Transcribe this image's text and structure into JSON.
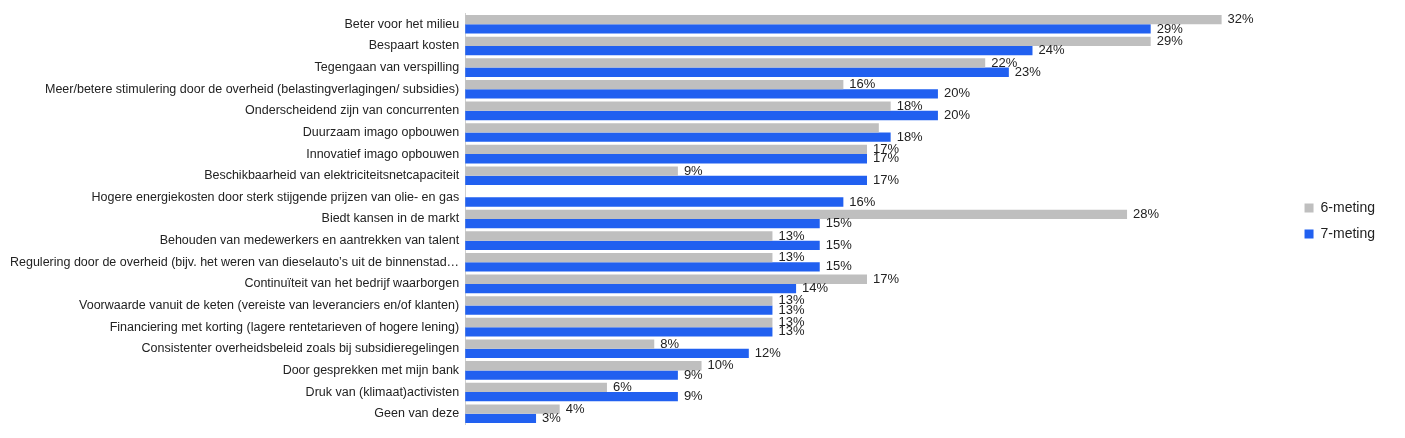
{
  "chart_data": {
    "type": "bar",
    "orientation": "horizontal",
    "legend": "right",
    "categories": [
      "Beter voor het milieu",
      "Bespaart kosten",
      "Tegengaan van verspilling",
      "Meer/betere stimulering door de overheid (belastingverlagingen/ subsidies)",
      "Onderscheidend zijn van concurrenten",
      "Duurzaam imago opbouwen",
      "Innovatief imago opbouwen",
      "Beschikbaarheid van elektriciteitsnetcapaciteit",
      "Hogere energiekosten door sterk stijgende prijzen van olie- en gas",
      "Biedt kansen in de markt",
      "Behouden van medewerkers en aantrekken van talent",
      "Regulering door de overheid (bijv. het weren van dieselauto’s uit de binnenstad…",
      "Continuïteit van het bedrijf waarborgen",
      "Voorwaarde vanuit de keten (vereiste van leveranciers en/of klanten)",
      "Financiering met korting (lagere rentetarieven of hogere lening)",
      "Consistenter overheidsbeleid zoals bij subsidieregelingen",
      "Door gesprekken met mijn bank",
      "Druk van (klimaat)activisten",
      "Geen van deze"
    ],
    "series": [
      {
        "name": "6-meting",
        "color": "#bfbfbf",
        "values": [
          32,
          29,
          22,
          16,
          18,
          17.5,
          17,
          9,
          null,
          28,
          13,
          13,
          17,
          13,
          13,
          8,
          10,
          6,
          4
        ],
        "value_labels": [
          "32%",
          "29%",
          "22%",
          "16%",
          "18%",
          null,
          "17%",
          "9%",
          null,
          "28%",
          "13%",
          "13%",
          "17%",
          "13%",
          "13%",
          "8%",
          "10%",
          "6%",
          "4%"
        ]
      },
      {
        "name": "7-meting",
        "color": "#2160f0",
        "values": [
          29,
          24,
          23,
          20,
          20,
          18,
          17,
          17,
          16,
          15,
          15,
          15,
          14,
          13,
          13,
          12,
          9,
          9,
          3
        ],
        "value_labels": [
          "29%",
          "24%",
          "23%",
          "20%",
          "20%",
          "18%",
          "17%",
          "17%",
          "16%",
          "15%",
          "15%",
          "15%",
          "14%",
          "13%",
          "13%",
          "12%",
          "9%",
          "9%",
          "3%"
        ]
      }
    ]
  }
}
